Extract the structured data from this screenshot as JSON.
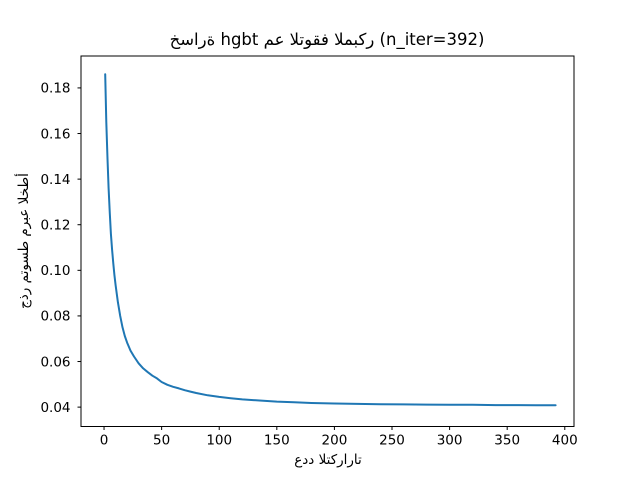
{
  "chart_data": {
    "type": "line",
    "title": "خسارة hgbt مع التوقف المبكر (n_iter=392)",
    "xlabel": "عدد التكرارات",
    "ylabel": "جذر متوسط مربع الخطأ",
    "x": [
      1,
      2,
      3,
      4,
      5,
      6,
      7,
      8,
      9,
      10,
      12,
      14,
      16,
      18,
      20,
      23,
      26,
      30,
      34,
      38,
      42,
      46,
      50,
      55,
      60,
      65,
      70,
      75,
      80,
      90,
      100,
      110,
      120,
      135,
      150,
      165,
      180,
      200,
      220,
      240,
      260,
      280,
      300,
      320,
      340,
      360,
      375,
      392
    ],
    "y": [
      0.186,
      0.165,
      0.149,
      0.136,
      0.125,
      0.116,
      0.109,
      0.103,
      0.098,
      0.0935,
      0.086,
      0.08,
      0.075,
      0.0712,
      0.0683,
      0.0648,
      0.0622,
      0.0592,
      0.057,
      0.0553,
      0.0538,
      0.0526,
      0.051,
      0.0498,
      0.0489,
      0.0482,
      0.0474,
      0.0468,
      0.0462,
      0.0452,
      0.0445,
      0.0439,
      0.0434,
      0.0429,
      0.0424,
      0.0421,
      0.0418,
      0.0416,
      0.0414,
      0.0413,
      0.0412,
      0.0411,
      0.041,
      0.041,
      0.0409,
      0.0409,
      0.0408,
      0.0408
    ],
    "xticks": [
      0,
      50,
      100,
      150,
      200,
      250,
      300,
      350,
      400
    ],
    "xtick_labels": [
      "0",
      "50",
      "100",
      "150",
      "200",
      "250",
      "300",
      "350",
      "400"
    ],
    "yticks": [
      0.04,
      0.06,
      0.08,
      0.1,
      0.12,
      0.14,
      0.16,
      0.18
    ],
    "ytick_labels": [
      "0.04",
      "0.06",
      "0.08",
      "0.10",
      "0.12",
      "0.14",
      "0.16",
      "0.18"
    ],
    "xlim": [
      -20,
      408
    ],
    "ylim": [
      0.0315,
      0.194
    ],
    "line_color": "#1f77b4",
    "axis_color": "#000000",
    "grid": false,
    "legend_position": "none"
  }
}
